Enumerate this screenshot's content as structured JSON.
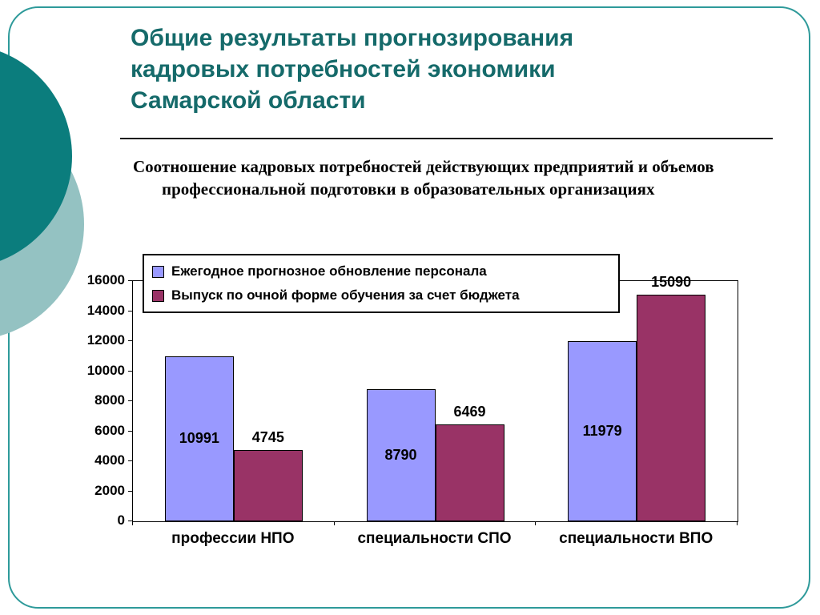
{
  "slide": {
    "title_lines": [
      "Общие результаты прогнозирования",
      "кадровых потребностей экономики",
      "Самарской области"
    ],
    "subtitle": "Соотношение кадровых потребностей действующих предприятий и объемов профессиональной подготовки в образовательных организациях"
  },
  "colors": {
    "title_text": "#156a6a",
    "slide_border": "#2e9a9a",
    "circle_dark": "#0b7d7d",
    "circle_light": "#94c2c2",
    "series1": "#9999ff",
    "series2": "#993366"
  },
  "chart_data": {
    "type": "bar",
    "categories": [
      "профессии НПО",
      "специальности СПО",
      "специальности ВПО"
    ],
    "series": [
      {
        "name": "Ежегодное прогнозное обновление персонала",
        "color": "#9999ff",
        "values": [
          10991,
          8790,
          11979
        ],
        "label_position": "inside-center"
      },
      {
        "name": "Выпуск по очной форме обучения за счет бюджета",
        "color": "#993366",
        "values": [
          4745,
          6469,
          15090
        ],
        "label_position": "above"
      }
    ],
    "ylim": [
      0,
      16000
    ],
    "ytick_step": 2000,
    "yticks": [
      0,
      2000,
      4000,
      6000,
      8000,
      10000,
      12000,
      14000,
      16000
    ],
    "legend_position": "top-left",
    "grid": false
  }
}
